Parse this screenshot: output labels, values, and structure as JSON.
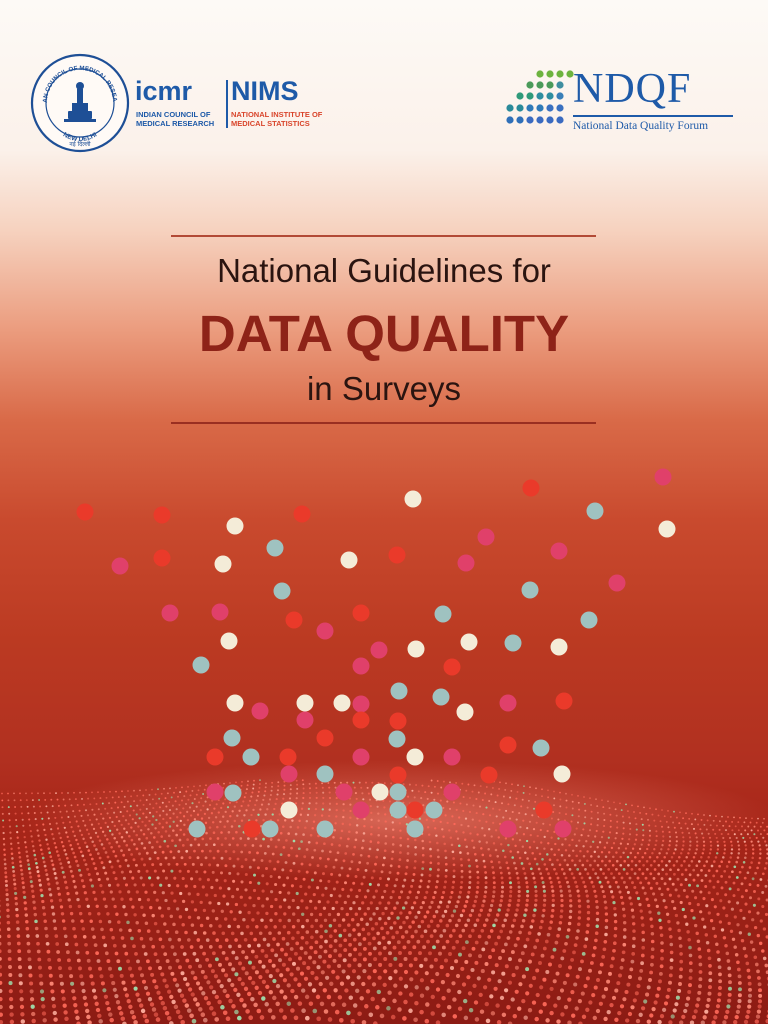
{
  "logos": {
    "seal": {
      "ring_text_left": "भारतीय आयुर्विज्ञान",
      "ring_text_right": "अनुसंधान परिषद",
      "inner_text": "INDIAN COUNCIL OF MEDICAL RESEARCH",
      "bottom_text": "NEW DELHI",
      "hindi_bottom": "नई दिल्ली"
    },
    "icmr": {
      "name": "icmr",
      "full_name": "INDIAN COUNCIL OF MEDICAL RESEARCH"
    },
    "nims": {
      "name": "NIMS",
      "full_name": "NATIONAL INSTITUTE OF MEDICAL STATISTICS"
    },
    "ndqf": {
      "name": "NDQF",
      "full_name": "National Data Quality Forum"
    }
  },
  "title": {
    "line1": "National Guidelines for",
    "line2": "DATA QUALITY",
    "line3": "in Surveys"
  },
  "colors": {
    "brand_blue": "#1e5aa8",
    "title_red": "#8e2318",
    "accent_orange": "#d9452b",
    "dot_cream": "#f4ecd8",
    "dot_teal": "#9fc2c0",
    "dot_pink": "#e0406a",
    "dot_red": "#ea3a2a"
  }
}
